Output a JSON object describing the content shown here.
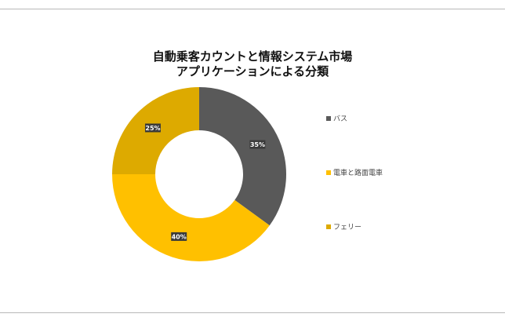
{
  "chart_data": {
    "type": "pie",
    "subtype": "donut",
    "title_lines": [
      "自動乗客カウントと情報システム市場",
      "アプリケーションによる分類"
    ],
    "categories": [
      "バス",
      "電車と路面電車",
      "フェリー"
    ],
    "values": [
      35,
      40,
      25
    ],
    "data_labels": [
      "35%",
      "40%",
      "25%"
    ],
    "colors": [
      "#595959",
      "#FFC000",
      "#DDAA00"
    ],
    "legend_position": "right"
  }
}
